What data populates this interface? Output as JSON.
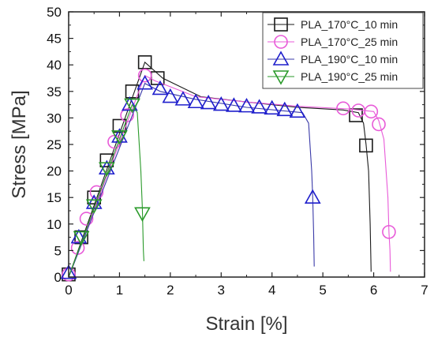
{
  "chart_data": {
    "type": "line",
    "xlabel": "Strain [%]",
    "ylabel": "Stress [MPa]",
    "xlim": [
      0,
      7
    ],
    "ylim": [
      0,
      50
    ],
    "xticks": [
      0,
      1,
      2,
      3,
      4,
      5,
      6,
      7
    ],
    "yticks": [
      0,
      5,
      10,
      15,
      20,
      25,
      30,
      35,
      40,
      45,
      50
    ],
    "grid": false,
    "legend_position": "top-right",
    "series": [
      {
        "name": "PLA_170°C_10 min",
        "marker": "square",
        "color": "#1a1a1a",
        "markerColor": "#1a1a1a",
        "points": [
          [
            0,
            0
          ],
          [
            1.5,
            40.5
          ],
          [
            1.85,
            37.5
          ],
          [
            2.6,
            34
          ],
          [
            3.5,
            33
          ],
          [
            4.5,
            32
          ],
          [
            5.4,
            31.5
          ],
          [
            5.7,
            31
          ],
          [
            5.8,
            29
          ],
          [
            5.85,
            25
          ],
          [
            5.9,
            20
          ],
          [
            5.93,
            10
          ],
          [
            5.95,
            1
          ]
        ],
        "markers": [
          [
            0,
            0.5
          ],
          [
            0.25,
            7.5
          ],
          [
            0.5,
            15
          ],
          [
            0.75,
            22
          ],
          [
            1,
            28.5
          ],
          [
            1.25,
            35
          ],
          [
            1.5,
            40.5
          ],
          [
            1.75,
            37.5
          ],
          [
            5.65,
            30.5
          ],
          [
            5.85,
            24.8
          ]
        ]
      },
      {
        "name": "PLA_170°C_25 min",
        "marker": "circle",
        "color": "#e85ad8",
        "markerColor": "#e85ad8",
        "points": [
          [
            0,
            0
          ],
          [
            1.5,
            38
          ],
          [
            1.7,
            37
          ],
          [
            2.5,
            34
          ],
          [
            3.5,
            33
          ],
          [
            4.5,
            32.2
          ],
          [
            5.5,
            31.7
          ],
          [
            6,
            31.2
          ],
          [
            6.1,
            29.5
          ],
          [
            6.2,
            26
          ],
          [
            6.28,
            15
          ],
          [
            6.3,
            8.5
          ],
          [
            6.32,
            5
          ],
          [
            6.33,
            1
          ]
        ],
        "markers": [
          [
            0,
            0.5
          ],
          [
            0.18,
            5.5
          ],
          [
            0.35,
            11
          ],
          [
            0.55,
            16
          ],
          [
            0.9,
            25.5
          ],
          [
            1.15,
            30.5
          ],
          [
            1.5,
            38
          ],
          [
            5.4,
            31.8
          ],
          [
            5.7,
            31.4
          ],
          [
            5.95,
            31.2
          ],
          [
            6.1,
            28.8
          ],
          [
            6.3,
            8.5
          ]
        ]
      },
      {
        "name": "PLA_190°C_10 min",
        "marker": "triangle-up",
        "color": "#3a3aa8",
        "markerColor": "#1f1fcc",
        "points": [
          [
            0,
            0
          ],
          [
            1.5,
            36.5
          ],
          [
            1.8,
            35
          ],
          [
            2.5,
            33.5
          ],
          [
            3.5,
            32
          ],
          [
            4.6,
            31
          ],
          [
            4.72,
            29
          ],
          [
            4.78,
            20
          ],
          [
            4.8,
            15
          ],
          [
            4.82,
            8
          ],
          [
            4.83,
            2
          ]
        ],
        "markers": [
          [
            0,
            0.8
          ],
          [
            0.2,
            7.5
          ],
          [
            0.5,
            14
          ],
          [
            0.75,
            20.5
          ],
          [
            1,
            26.5
          ],
          [
            1.2,
            32.5
          ],
          [
            1.5,
            36.5
          ],
          [
            1.8,
            35.5
          ],
          [
            2,
            34
          ],
          [
            2.25,
            33.5
          ],
          [
            2.5,
            33
          ],
          [
            2.75,
            32.8
          ],
          [
            3,
            32.5
          ],
          [
            3.25,
            32.3
          ],
          [
            3.5,
            32.2
          ],
          [
            3.75,
            32
          ],
          [
            4,
            31.8
          ],
          [
            4.25,
            31.5
          ],
          [
            4.5,
            31.2
          ],
          [
            4.8,
            15
          ]
        ]
      },
      {
        "name": "PLA_190°C_25 min",
        "marker": "triangle-down",
        "color": "#2a9a2a",
        "markerColor": "#2a9a2a",
        "points": [
          [
            0,
            0
          ],
          [
            1.25,
            32.5
          ],
          [
            1.35,
            31
          ],
          [
            1.42,
            20
          ],
          [
            1.45,
            13
          ],
          [
            1.47,
            5
          ],
          [
            1.48,
            3
          ]
        ],
        "markers": [
          [
            0.25,
            7.5
          ],
          [
            0.5,
            13.5
          ],
          [
            0.75,
            20.5
          ],
          [
            1,
            26.5
          ],
          [
            1.25,
            32.5
          ],
          [
            1.45,
            12
          ]
        ]
      }
    ]
  }
}
